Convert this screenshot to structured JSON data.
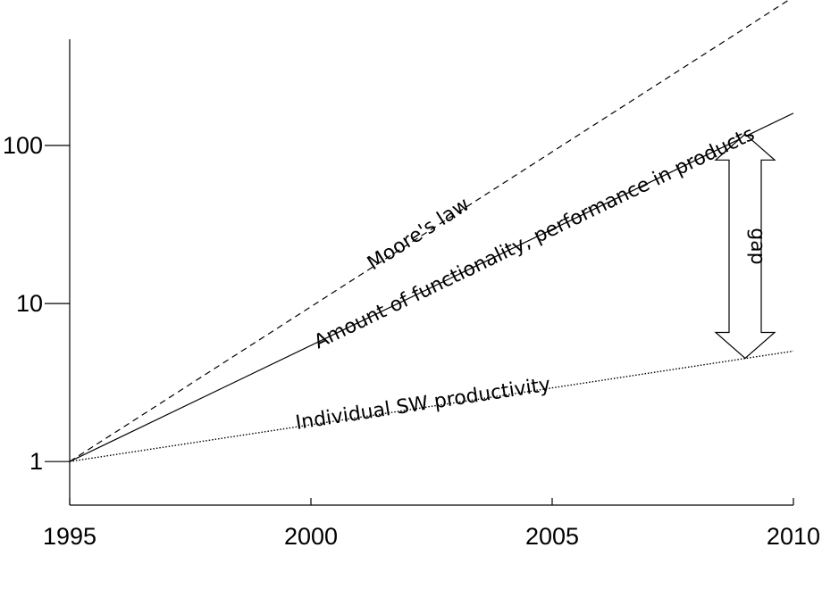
{
  "chart_data": {
    "type": "line",
    "title": "",
    "xlabel": "",
    "ylabel": "",
    "xlim": [
      1995,
      2010
    ],
    "ylim": [
      0.53,
      470
    ],
    "y_scale": "log",
    "grid": false,
    "x_ticks": [
      "1995",
      "2000",
      "2005",
      "2010"
    ],
    "y_ticks": [
      {
        "value": 1,
        "label": "1"
      },
      {
        "value": 10,
        "label": "10"
      },
      {
        "value": 100,
        "label": "100"
      }
    ],
    "series": [
      {
        "name": "Moore's law",
        "style": "dashed",
        "x": [
          1995,
          2010
        ],
        "y": [
          1,
          870
        ]
      },
      {
        "name": "Amount of functionality, performance in products",
        "style": "solid",
        "x": [
          1995,
          2010
        ],
        "y": [
          1,
          160
        ]
      },
      {
        "name": "Individual SW productivity",
        "style": "dotted",
        "x": [
          1995,
          2010
        ],
        "y": [
          1,
          5
        ]
      }
    ],
    "annotations": [
      {
        "text": "gap",
        "x": 2009,
        "y_top": 118,
        "y_bottom": 4.5
      }
    ]
  }
}
